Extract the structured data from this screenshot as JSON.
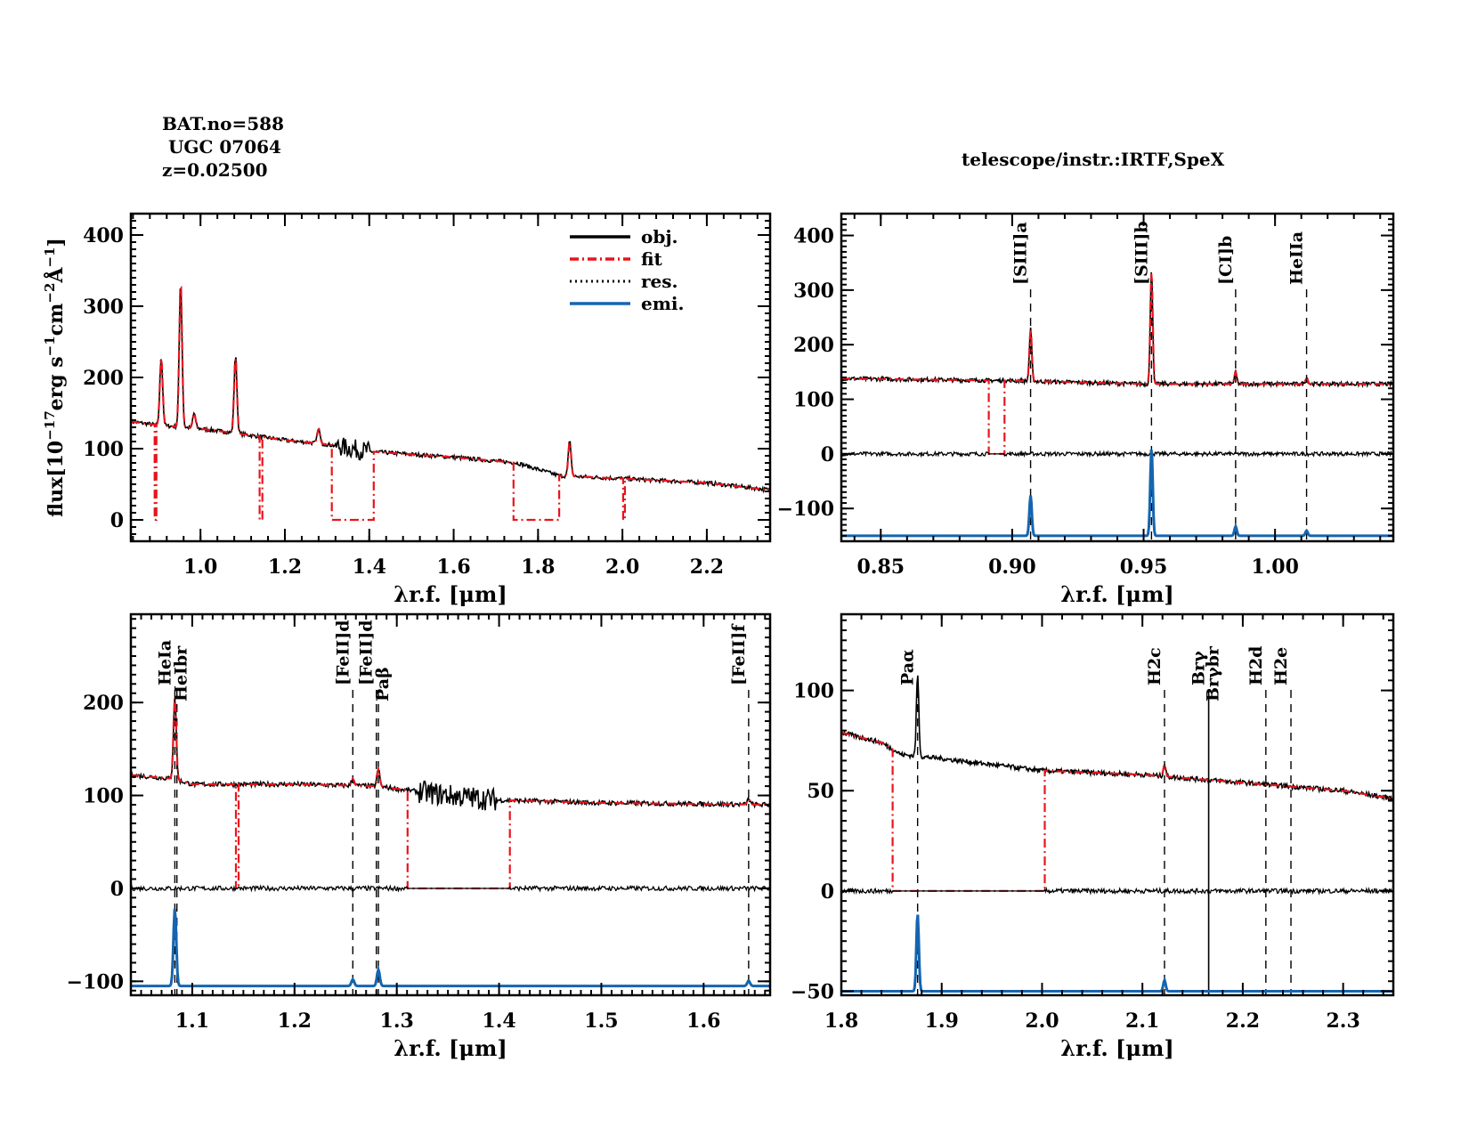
{
  "header": {
    "bat_no": "BAT.no=588",
    "object": " UGC 07064",
    "redshift": "z=0.02500",
    "telescope": "telescope/instr.:IRTF,SpeX"
  },
  "colors": {
    "obj": "#000000",
    "fit": "#e8141c",
    "res": "#000000",
    "emi": "#1565b0"
  },
  "chart_data": [
    {
      "type": "line",
      "panel": "top-left",
      "xlabel": "λr.f. [μm]",
      "ylabel": "flux[10^-17 erg s^-1 cm^-2 Å^-1]",
      "ylabel_parts": {
        "pre": "flux[10",
        "e1": "−17",
        "mid1": "erg s",
        "e2": "−1",
        "mid2": "cm",
        "e3": "−2",
        "mid3": "Å",
        "e4": "−1",
        "post": "]"
      },
      "xlim": [
        0.835,
        2.35
      ],
      "ylim": [
        -30,
        430
      ],
      "xticks": [
        1.0,
        1.2,
        1.4,
        1.6,
        1.8,
        2.0,
        2.2
      ],
      "xtick_labels": [
        "1.0",
        "1.2",
        "1.4",
        "1.6",
        "1.8",
        "2.0",
        "2.2"
      ],
      "yticks": [
        0,
        100,
        200,
        300,
        400
      ],
      "ytick_labels": [
        "0",
        "100",
        "200",
        "300",
        "400"
      ],
      "legend": {
        "position": "top-right",
        "entries": [
          "obj.",
          "fit",
          "res.",
          "emi."
        ]
      },
      "continuum": [
        [
          0.835,
          138
        ],
        [
          0.9,
          133
        ],
        [
          1.0,
          128
        ],
        [
          1.08,
          122
        ],
        [
          1.2,
          112
        ],
        [
          1.3,
          106
        ],
        [
          1.4,
          96
        ],
        [
          1.6,
          88
        ],
        [
          1.75,
          80
        ],
        [
          1.85,
          62
        ],
        [
          2.0,
          58
        ],
        [
          2.2,
          52
        ],
        [
          2.35,
          42
        ]
      ],
      "emission_peaks": [
        [
          0.907,
          228
        ],
        [
          0.953,
          335
        ],
        [
          0.985,
          150
        ],
        [
          1.083,
          230
        ],
        [
          1.28,
          128
        ],
        [
          1.875,
          110
        ]
      ],
      "fit_gaps": [
        [
          0.89,
          0.895
        ],
        [
          1.14,
          1.145
        ],
        [
          1.31,
          1.41
        ],
        [
          1.74,
          1.85
        ],
        [
          2.0,
          2.005
        ]
      ]
    },
    {
      "type": "line",
      "panel": "top-right",
      "xlabel": "λr.f. [μm]",
      "xlim": [
        0.835,
        1.045
      ],
      "ylim": [
        -160,
        440
      ],
      "xticks": [
        0.85,
        0.9,
        0.95,
        1.0
      ],
      "xtick_labels": [
        "0.85",
        "0.90",
        "0.95",
        "1.00"
      ],
      "yticks": [
        -100,
        0,
        100,
        200,
        300,
        400
      ],
      "ytick_labels": [
        "−100",
        "0",
        "100",
        "200",
        "300",
        "400"
      ],
      "lines": [
        {
          "label": "[SIII]a",
          "x": 0.907,
          "style": "dashed"
        },
        {
          "label": "[SIII]b",
          "x": 0.953,
          "style": "dashed"
        },
        {
          "label": "[CI]b",
          "x": 0.985,
          "style": "dashed"
        },
        {
          "label": "HeIIa",
          "x": 1.012,
          "style": "dashed"
        }
      ],
      "continuum": [
        [
          0.835,
          138
        ],
        [
          0.9,
          134
        ],
        [
          0.95,
          128
        ],
        [
          1.0,
          128
        ],
        [
          1.045,
          128
        ]
      ],
      "emission_peaks": [
        [
          0.907,
          228
        ],
        [
          0.953,
          335
        ],
        [
          0.985,
          150
        ],
        [
          1.012,
          140
        ]
      ],
      "emi_offset": -150,
      "fit_gaps": [
        [
          0.891,
          0.897
        ]
      ]
    },
    {
      "type": "line",
      "panel": "bottom-left",
      "xlabel": "λr.f. [μm]",
      "xlim": [
        1.04,
        1.665
      ],
      "ylim": [
        -115,
        295
      ],
      "xticks": [
        1.1,
        1.2,
        1.3,
        1.4,
        1.5,
        1.6
      ],
      "xtick_labels": [
        "1.1",
        "1.2",
        "1.3",
        "1.4",
        "1.5",
        "1.6"
      ],
      "yticks": [
        -100,
        0,
        100,
        200
      ],
      "ytick_labels": [
        "−100",
        "0",
        "100",
        "200"
      ],
      "lines": [
        {
          "label": "HeIa",
          "x": 1.083,
          "style": "dashed"
        },
        {
          "label": "HeIbr",
          "x": 1.085,
          "style": "dashed"
        },
        {
          "label": "[FeII]d",
          "x": 1.257,
          "style": "dashed"
        },
        {
          "label": "[FeII]d",
          "x": 1.28,
          "style": "dashed"
        },
        {
          "label": "Paβ",
          "x": 1.282,
          "style": "dashed"
        },
        {
          "label": "[FeII]f",
          "x": 1.644,
          "style": "dashed"
        }
      ],
      "continuum": [
        [
          1.04,
          122
        ],
        [
          1.08,
          118
        ],
        [
          1.1,
          112
        ],
        [
          1.2,
          112
        ],
        [
          1.28,
          110
        ],
        [
          1.35,
          100
        ],
        [
          1.4,
          95
        ],
        [
          1.5,
          92
        ],
        [
          1.665,
          90
        ]
      ],
      "emission_peaks": [
        [
          1.083,
          205
        ],
        [
          1.257,
          118
        ],
        [
          1.282,
          128
        ],
        [
          1.644,
          96
        ]
      ],
      "emi_offset": -105,
      "fit_gaps": [
        [
          1.142,
          1.145
        ],
        [
          1.31,
          1.41
        ]
      ]
    },
    {
      "type": "line",
      "panel": "bottom-right",
      "xlabel": "λr.f. [μm]",
      "xlim": [
        1.8,
        2.35
      ],
      "ylim": [
        -52,
        138
      ],
      "xticks": [
        1.8,
        1.9,
        2.0,
        2.1,
        2.2,
        2.3
      ],
      "xtick_labels": [
        "1.8",
        "1.9",
        "2.0",
        "2.1",
        "2.2",
        "2.3"
      ],
      "yticks": [
        -50,
        0,
        50,
        100
      ],
      "ytick_labels": [
        "−50",
        "0",
        "50",
        "100"
      ],
      "lines": [
        {
          "label": "Paα",
          "x": 1.876,
          "style": "dashed"
        },
        {
          "label": "H2c",
          "x": 2.122,
          "style": "dashed"
        },
        {
          "label": "Brγ",
          "x": 2.166,
          "style": "solid"
        },
        {
          "label": "Brγbr",
          "x": 2.166,
          "style": "solid"
        },
        {
          "label": "H2d",
          "x": 2.223,
          "style": "dashed"
        },
        {
          "label": "H2e",
          "x": 2.248,
          "style": "dashed"
        }
      ],
      "continuum": [
        [
          1.8,
          79
        ],
        [
          1.84,
          74
        ],
        [
          1.86,
          68
        ],
        [
          1.9,
          66
        ],
        [
          1.95,
          63
        ],
        [
          2.0,
          60
        ],
        [
          2.1,
          58
        ],
        [
          2.2,
          54
        ],
        [
          2.3,
          50
        ],
        [
          2.35,
          46
        ]
      ],
      "emission_peaks": [
        [
          1.876,
          108
        ],
        [
          2.122,
          63
        ]
      ],
      "emi_offset": -50,
      "fit_gaps": [
        [
          1.851,
          2.002
        ]
      ]
    }
  ]
}
